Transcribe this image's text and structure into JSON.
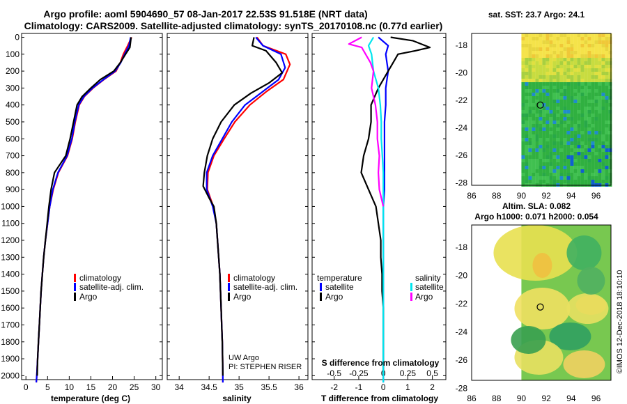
{
  "title_line1": "Argo profile: aoml 5904690_57 08-Jan-2017 22.53S 91.518E (NRT data)",
  "title_line2": "Climatology: CARS2009. Satellite-adjusted climatology: synTS_20170108.nc (0.77d earlier)",
  "depth_ticks": [
    0,
    100,
    200,
    300,
    400,
    500,
    600,
    700,
    800,
    900,
    1000,
    1100,
    1200,
    1300,
    1400,
    1500,
    1600,
    1700,
    1800,
    1900,
    2000
  ],
  "colors": {
    "climatology": "#ff0000",
    "satellite": "#0000ff",
    "argo": "#000000",
    "sat_salinity": "#00e5ee",
    "argo_salinity": "#ff00ff"
  },
  "panels": {
    "temperature": {
      "xlabel": "temperature (deg C)",
      "xticks": [
        "0",
        "5",
        "10",
        "15",
        "20",
        "25",
        "30"
      ],
      "legend": [
        "climatology",
        "satellite-adj. clim.",
        "Argo"
      ]
    },
    "salinity": {
      "xlabel": "salinity",
      "xticks": [
        "34",
        "34.5",
        "35",
        "35.5",
        "36"
      ],
      "legend": [
        "climatology",
        "satellite-adj. clim.",
        "Argo"
      ],
      "credit1": "UW Argo",
      "credit2": "PI: STEPHEN RISER"
    },
    "difference": {
      "xlabel": "T difference from climatology",
      "xticks": [
        "-2",
        "-1",
        "0",
        "1",
        "2"
      ],
      "s_label": "S difference from climatology",
      "s_ticks": [
        "-0.5",
        "-0.25",
        "0",
        "0.25",
        "0.5"
      ],
      "legend_temp_head": "temperature",
      "legend_sal_head": "salinity",
      "legend_temp": [
        "satellite",
        "Argo"
      ],
      "legend_sal": [
        "satellite",
        "Argo"
      ]
    }
  },
  "maps": {
    "sst_title": "sat. SST: 23.7 Argo: 24.1",
    "sla_title1": "Altim. SLA: 0.082",
    "sla_title2": "Argo h1000: 0.071 h2000: 0.054",
    "xticks": [
      "86",
      "88",
      "90",
      "92",
      "94",
      "96"
    ],
    "yticks": [
      "-18",
      "-20",
      "-22",
      "-24",
      "-26",
      "-28"
    ],
    "profile_location": {
      "lon": 91.518,
      "lat": -22.53
    }
  },
  "footer": "©IMOS 12-Dec-2018 18:10:10",
  "chart_data": [
    {
      "type": "line",
      "title": "temperature",
      "xlabel": "temperature (deg C)",
      "ylabel": "depth",
      "xlim": [
        -1,
        31.5
      ],
      "ylim": [
        2060,
        0
      ],
      "series": [
        {
          "name": "climatology",
          "color": "#ff0000",
          "points": [
            [
              24.4,
              0
            ],
            [
              23.5,
              50
            ],
            [
              22.5,
              100
            ],
            [
              21.8,
              150
            ],
            [
              20.8,
              200
            ],
            [
              18,
              250
            ],
            [
              15.5,
              300
            ],
            [
              13.5,
              350
            ],
            [
              12.3,
              400
            ],
            [
              11.4,
              500
            ],
            [
              10.7,
              600
            ],
            [
              9.6,
              700
            ],
            [
              7.5,
              800
            ],
            [
              6.3,
              900
            ],
            [
              5.5,
              1000
            ],
            [
              5.0,
              1100
            ],
            [
              4.5,
              1200
            ],
            [
              4.1,
              1300
            ],
            [
              3.8,
              1400
            ],
            [
              3.5,
              1500
            ],
            [
              3.3,
              1600
            ],
            [
              3.1,
              1700
            ],
            [
              2.9,
              1800
            ],
            [
              2.7,
              1900
            ],
            [
              2.5,
              2000
            ],
            [
              2.4,
              2040
            ]
          ]
        },
        {
          "name": "satellite-adj. clim.",
          "color": "#0000ff",
          "points": [
            [
              24.2,
              0
            ],
            [
              23.8,
              50
            ],
            [
              22.8,
              100
            ],
            [
              21.9,
              150
            ],
            [
              20.6,
              200
            ],
            [
              17.9,
              250
            ],
            [
              15.4,
              300
            ],
            [
              13.4,
              350
            ],
            [
              12.2,
              400
            ],
            [
              11.3,
              500
            ],
            [
              10.6,
              600
            ],
            [
              9.5,
              700
            ],
            [
              7.4,
              800
            ],
            [
              6.2,
              900
            ],
            [
              5.5,
              1000
            ],
            [
              5.0,
              1100
            ],
            [
              4.5,
              1200
            ],
            [
              4.1,
              1300
            ],
            [
              3.8,
              1400
            ],
            [
              3.5,
              1500
            ],
            [
              3.3,
              1600
            ],
            [
              3.1,
              1700
            ],
            [
              2.9,
              1800
            ],
            [
              2.7,
              1900
            ],
            [
              2.5,
              2000
            ],
            [
              2.4,
              2040
            ]
          ]
        },
        {
          "name": "Argo",
          "color": "#000000",
          "points": [
            [
              24.3,
              0
            ],
            [
              24.0,
              60
            ],
            [
              23.0,
              100
            ],
            [
              21.8,
              150
            ],
            [
              20.3,
              200
            ],
            [
              17.2,
              250
            ],
            [
              15.0,
              300
            ],
            [
              13.0,
              350
            ],
            [
              11.8,
              400
            ],
            [
              11.0,
              500
            ],
            [
              10.2,
              600
            ],
            [
              9.2,
              700
            ],
            [
              6.6,
              800
            ],
            [
              5.8,
              900
            ],
            [
              5.3,
              1000
            ],
            [
              4.9,
              1100
            ],
            [
              4.5,
              1200
            ],
            [
              4.1,
              1300
            ],
            [
              3.8,
              1400
            ],
            [
              3.5,
              1500
            ],
            [
              3.3,
              1600
            ],
            [
              3.1,
              1700
            ],
            [
              2.9,
              1800
            ],
            [
              2.7,
              1900
            ],
            [
              2.6,
              2000
            ]
          ]
        }
      ]
    },
    {
      "type": "line",
      "title": "salinity",
      "xlabel": "salinity",
      "ylabel": "depth",
      "xlim": [
        33.8,
        36.15
      ],
      "ylim": [
        2060,
        0
      ],
      "series": [
        {
          "name": "climatology",
          "color": "#ff0000",
          "points": [
            [
              35.3,
              0
            ],
            [
              35.4,
              50
            ],
            [
              35.78,
              100
            ],
            [
              35.85,
              160
            ],
            [
              35.74,
              250
            ],
            [
              35.46,
              320
            ],
            [
              35.18,
              400
            ],
            [
              34.93,
              500
            ],
            [
              34.75,
              600
            ],
            [
              34.58,
              700
            ],
            [
              34.48,
              800
            ],
            [
              34.47,
              900
            ],
            [
              34.57,
              1000
            ],
            [
              34.62,
              1100
            ],
            [
              34.64,
              1200
            ],
            [
              34.66,
              1300
            ],
            [
              34.68,
              1400
            ],
            [
              34.69,
              1500
            ],
            [
              34.7,
              1600
            ],
            [
              34.71,
              1700
            ],
            [
              34.72,
              1800
            ],
            [
              34.725,
              1900
            ],
            [
              34.73,
              2000
            ],
            [
              34.73,
              2040
            ]
          ]
        },
        {
          "name": "satellite-adj. clim.",
          "color": "#0000ff",
          "points": [
            [
              35.28,
              0
            ],
            [
              35.4,
              50
            ],
            [
              35.7,
              100
            ],
            [
              35.77,
              180
            ],
            [
              35.66,
              250
            ],
            [
              35.4,
              320
            ],
            [
              35.1,
              400
            ],
            [
              34.88,
              500
            ],
            [
              34.72,
              600
            ],
            [
              34.56,
              700
            ],
            [
              34.46,
              800
            ],
            [
              34.46,
              900
            ],
            [
              34.56,
              1000
            ],
            [
              34.62,
              1100
            ],
            [
              34.64,
              1200
            ],
            [
              34.66,
              1300
            ],
            [
              34.68,
              1400
            ],
            [
              34.69,
              1500
            ],
            [
              34.7,
              1600
            ],
            [
              34.71,
              1700
            ],
            [
              34.72,
              1800
            ],
            [
              34.725,
              1900
            ],
            [
              34.73,
              2000
            ],
            [
              34.73,
              2040
            ]
          ]
        },
        {
          "name": "Argo",
          "color": "#000000",
          "points": [
            [
              35.25,
              0
            ],
            [
              35.22,
              50
            ],
            [
              35.45,
              80
            ],
            [
              35.62,
              150
            ],
            [
              35.72,
              210
            ],
            [
              35.5,
              270
            ],
            [
              35.2,
              330
            ],
            [
              34.92,
              400
            ],
            [
              34.7,
              500
            ],
            [
              34.56,
              600
            ],
            [
              34.47,
              700
            ],
            [
              34.42,
              800
            ],
            [
              34.4,
              880
            ],
            [
              34.5,
              950
            ],
            [
              34.58,
              1000
            ],
            [
              34.6,
              1050
            ],
            [
              34.62,
              1100
            ],
            [
              34.64,
              1200
            ],
            [
              34.66,
              1300
            ],
            [
              34.68,
              1400
            ],
            [
              34.69,
              1500
            ],
            [
              34.7,
              1600
            ],
            [
              34.71,
              1700
            ],
            [
              34.72,
              1800
            ],
            [
              34.725,
              1900
            ],
            [
              34.73,
              2000
            ]
          ]
        }
      ]
    },
    {
      "type": "line",
      "title": "T/S difference from climatology",
      "xlabel": "T difference from climatology",
      "ylabel": "depth",
      "xlim": [
        -2.9,
        2.55
      ],
      "ylim": [
        2060,
        0
      ],
      "secondary_x": {
        "label": "S difference from climatology",
        "range": [
          -0.725,
          0.6375
        ]
      },
      "series": [
        {
          "name": "temperature satellite",
          "color": "#0000ff",
          "points": [
            [
              -0.2,
              0
            ],
            [
              0.2,
              50
            ],
            [
              0.1,
              100
            ],
            [
              0.15,
              150
            ],
            [
              0.2,
              200
            ],
            [
              0.1,
              300
            ],
            [
              0.1,
              400
            ],
            [
              0.05,
              500
            ],
            [
              0.05,
              600
            ],
            [
              0.05,
              700
            ],
            [
              0.05,
              800
            ],
            [
              0.05,
              900
            ],
            [
              0,
              1000
            ],
            [
              0,
              1200
            ],
            [
              0,
              1500
            ],
            [
              0,
              2000
            ],
            [
              0,
              2040
            ]
          ]
        },
        {
          "name": "temperature Argo",
          "color": "#000000",
          "points": [
            [
              0.3,
              0
            ],
            [
              1.2,
              20
            ],
            [
              1.9,
              60
            ],
            [
              1.3,
              80
            ],
            [
              0.6,
              100
            ],
            [
              0.4,
              150
            ],
            [
              0.2,
              200
            ],
            [
              -0.2,
              300
            ],
            [
              -0.5,
              400
            ],
            [
              -0.5,
              500
            ],
            [
              -0.6,
              600
            ],
            [
              -0.8,
              700
            ],
            [
              -0.9,
              800
            ],
            [
              -0.6,
              900
            ],
            [
              -0.3,
              1000
            ],
            [
              -0.2,
              1100
            ],
            [
              -0.1,
              1200
            ],
            [
              -0.1,
              1300
            ],
            [
              -0.05,
              1400
            ],
            [
              -0.05,
              1500
            ],
            [
              0,
              1600
            ],
            [
              0,
              1700
            ],
            [
              0,
              1800
            ],
            [
              0,
              1900
            ],
            [
              0,
              2000
            ]
          ]
        },
        {
          "name": "salinity satellite",
          "color": "#00e5ee",
          "points": [
            [
              -0.1,
              0
            ],
            [
              -0.15,
              50
            ],
            [
              -0.12,
              100
            ],
            [
              -0.1,
              200
            ],
            [
              -0.05,
              300
            ],
            [
              -0.03,
              400
            ],
            [
              -0.02,
              500
            ],
            [
              -0.02,
              600
            ],
            [
              -0.01,
              700
            ],
            [
              0,
              800
            ],
            [
              0,
              900
            ],
            [
              0,
              1000
            ],
            [
              0,
              1200
            ],
            [
              0,
              1500
            ],
            [
              0,
              2000
            ],
            [
              0,
              2040
            ]
          ]
        },
        {
          "name": "salinity Argo",
          "color": "#ff00ff",
          "points": [
            [
              -0.22,
              0
            ],
            [
              -0.35,
              40
            ],
            [
              -0.22,
              60
            ],
            [
              -0.18,
              100
            ],
            [
              -0.13,
              150
            ],
            [
              -0.1,
              200
            ],
            [
              -0.12,
              300
            ],
            [
              -0.08,
              400
            ],
            [
              -0.06,
              500
            ],
            [
              -0.06,
              600
            ],
            [
              -0.04,
              700
            ],
            [
              -0.05,
              800
            ],
            [
              -0.04,
              900
            ],
            [
              0,
              1000
            ]
          ]
        }
      ]
    }
  ]
}
